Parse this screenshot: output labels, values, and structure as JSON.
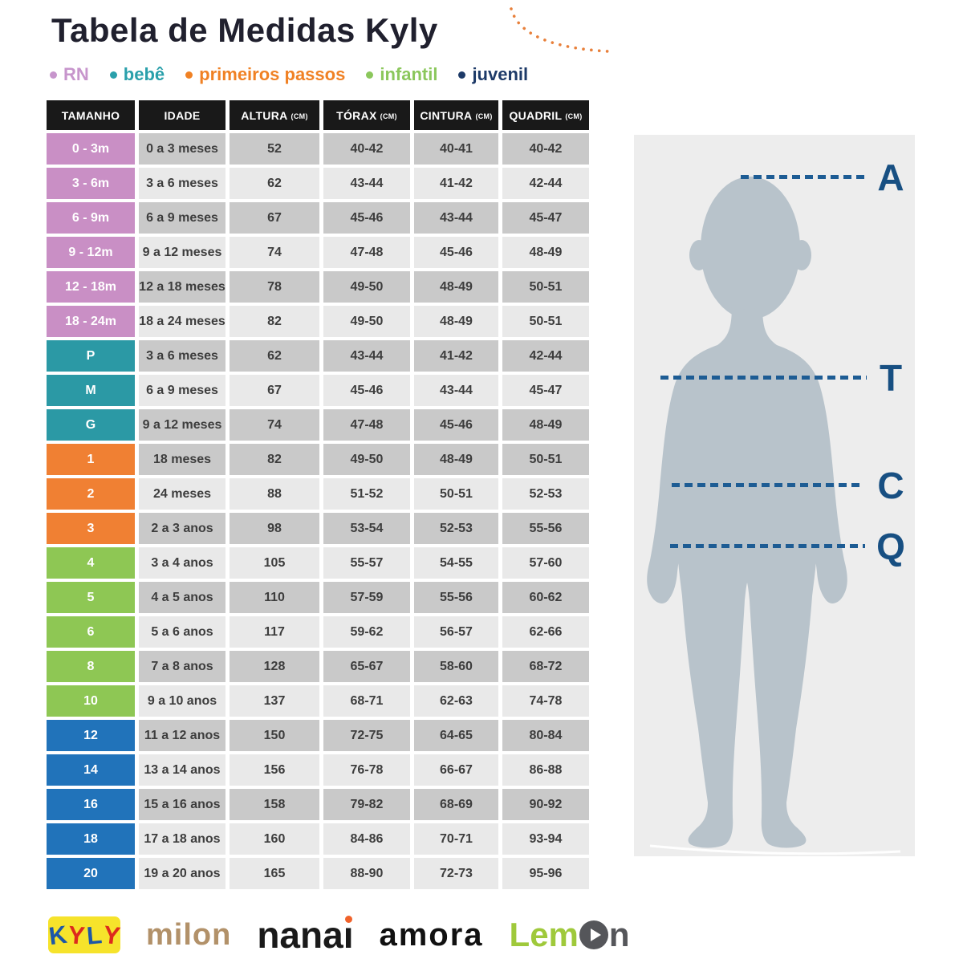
{
  "header": {
    "title": "Tabela de Medidas Kyly"
  },
  "legend": {
    "items": [
      {
        "label": "RN",
        "color": "#c795cc"
      },
      {
        "label": "bebê",
        "color": "#2aa0ab"
      },
      {
        "label": "primeiros passos",
        "color": "#f08124"
      },
      {
        "label": "infantil",
        "color": "#8bc75c"
      },
      {
        "label": "juvenil",
        "color": "#1d3a68"
      }
    ]
  },
  "table": {
    "columns": [
      {
        "label": "TAMANHO",
        "unit": ""
      },
      {
        "label": "IDADE",
        "unit": ""
      },
      {
        "label": "ALTURA",
        "unit": "(CM)"
      },
      {
        "label": "TÓRAX",
        "unit": "(CM)"
      },
      {
        "label": "CINTURA",
        "unit": "(CM)"
      },
      {
        "label": "QUADRIL",
        "unit": "(CM)"
      }
    ],
    "rows": [
      {
        "size": "0 - 3m",
        "group": "rn",
        "shade": "dark",
        "idade": "0 a 3 meses",
        "altura": "52",
        "torax": "40-42",
        "cintura": "40-41",
        "quadril": "40-42"
      },
      {
        "size": "3 - 6m",
        "group": "rn",
        "shade": "light",
        "idade": "3 a 6 meses",
        "altura": "62",
        "torax": "43-44",
        "cintura": "41-42",
        "quadril": "42-44"
      },
      {
        "size": "6 - 9m",
        "group": "rn",
        "shade": "dark",
        "idade": "6 a 9 meses",
        "altura": "67",
        "torax": "45-46",
        "cintura": "43-44",
        "quadril": "45-47"
      },
      {
        "size": "9 - 12m",
        "group": "rn",
        "shade": "light",
        "idade": "9 a 12 meses",
        "altura": "74",
        "torax": "47-48",
        "cintura": "45-46",
        "quadril": "48-49"
      },
      {
        "size": "12 - 18m",
        "group": "rn",
        "shade": "dark",
        "idade": "12 a 18 meses",
        "altura": "78",
        "torax": "49-50",
        "cintura": "48-49",
        "quadril": "50-51"
      },
      {
        "size": "18 - 24m",
        "group": "rn",
        "shade": "light",
        "idade": "18 a 24 meses",
        "altura": "82",
        "torax": "49-50",
        "cintura": "48-49",
        "quadril": "50-51"
      },
      {
        "size": "P",
        "group": "bebe",
        "shade": "dark",
        "idade": "3 a 6 meses",
        "altura": "62",
        "torax": "43-44",
        "cintura": "41-42",
        "quadril": "42-44"
      },
      {
        "size": "M",
        "group": "bebe",
        "shade": "light",
        "idade": "6 a 9 meses",
        "altura": "67",
        "torax": "45-46",
        "cintura": "43-44",
        "quadril": "45-47"
      },
      {
        "size": "G",
        "group": "bebe",
        "shade": "dark",
        "idade": "9 a 12 meses",
        "altura": "74",
        "torax": "47-48",
        "cintura": "45-46",
        "quadril": "48-49"
      },
      {
        "size": "1",
        "group": "pp",
        "shade": "dark",
        "idade": "18 meses",
        "altura": "82",
        "torax": "49-50",
        "cintura": "48-49",
        "quadril": "50-51"
      },
      {
        "size": "2",
        "group": "pp",
        "shade": "light",
        "idade": "24 meses",
        "altura": "88",
        "torax": "51-52",
        "cintura": "50-51",
        "quadril": "52-53"
      },
      {
        "size": "3",
        "group": "pp",
        "shade": "dark",
        "idade": "2 a 3 anos",
        "altura": "98",
        "torax": "53-54",
        "cintura": "52-53",
        "quadril": "55-56"
      },
      {
        "size": "4",
        "group": "infantil",
        "shade": "light",
        "idade": "3 a 4 anos",
        "altura": "105",
        "torax": "55-57",
        "cintura": "54-55",
        "quadril": "57-60"
      },
      {
        "size": "5",
        "group": "infantil",
        "shade": "dark",
        "idade": "4 a 5 anos",
        "altura": "110",
        "torax": "57-59",
        "cintura": "55-56",
        "quadril": "60-62"
      },
      {
        "size": "6",
        "group": "infantil",
        "shade": "light",
        "idade": "5 a 6 anos",
        "altura": "117",
        "torax": "59-62",
        "cintura": "56-57",
        "quadril": "62-66"
      },
      {
        "size": "8",
        "group": "infantil",
        "shade": "dark",
        "idade": "7 a 8 anos",
        "altura": "128",
        "torax": "65-67",
        "cintura": "58-60",
        "quadril": "68-72"
      },
      {
        "size": "10",
        "group": "infantil",
        "shade": "light",
        "idade": "9 a 10 anos",
        "altura": "137",
        "torax": "68-71",
        "cintura": "62-63",
        "quadril": "74-78"
      },
      {
        "size": "12",
        "group": "juvenil",
        "shade": "dark",
        "idade": "11 a 12 anos",
        "altura": "150",
        "torax": "72-75",
        "cintura": "64-65",
        "quadril": "80-84"
      },
      {
        "size": "14",
        "group": "juvenil",
        "shade": "light",
        "idade": "13 a 14 anos",
        "altura": "156",
        "torax": "76-78",
        "cintura": "66-67",
        "quadril": "86-88"
      },
      {
        "size": "16",
        "group": "juvenil",
        "shade": "dark",
        "idade": "15 a 16 anos",
        "altura": "158",
        "torax": "79-82",
        "cintura": "68-69",
        "quadril": "90-92"
      },
      {
        "size": "18",
        "group": "juvenil",
        "shade": "light",
        "idade": "17 a 18 anos",
        "altura": "160",
        "torax": "84-86",
        "cintura": "70-71",
        "quadril": "93-94"
      },
      {
        "size": "20",
        "group": "juvenil",
        "shade": "light",
        "idade": "19 a 20 anos",
        "altura": "165",
        "torax": "88-90",
        "cintura": "72-73",
        "quadril": "95-96"
      }
    ]
  },
  "diagram": {
    "labels": [
      {
        "letter": "A"
      },
      {
        "letter": "T"
      },
      {
        "letter": "C"
      },
      {
        "letter": "Q"
      }
    ]
  },
  "footer": {
    "logos": {
      "kyly": {
        "text": "KYLY"
      },
      "milon": {
        "text": "milon"
      },
      "nanai": {
        "text": "nanai"
      },
      "amora": {
        "text": "amora"
      },
      "lemon": {
        "text": "Lemon"
      }
    }
  },
  "palette": {
    "title_color": "#20202e",
    "header_bg": "#191919",
    "header_text": "#ffffff",
    "cell_text": "#3d3d3d",
    "row_dark": "#c9c9c9",
    "row_light": "#e9e9e9",
    "rn": "#c98fc5",
    "bebe": "#2b99a5",
    "pp": "#f08033",
    "infantil": "#8ec754",
    "juvenil": "#2173ba",
    "accent_line": "#1d5c94",
    "letter_color": "#174f82",
    "silhouette": "#b8c3cb",
    "panel_bg": "#ededed",
    "arc_dots": "#e8803b",
    "kyly_yellow": "#f6e32b",
    "kyly_blue": "#1d57a7",
    "kyly_red": "#dd2a1d",
    "milon_tan": "#b29169",
    "nanai_black": "#1a1a1a",
    "nanai_dot": "#f0622a",
    "amora_black": "#111111",
    "lemon_green": "#9fc93b",
    "lemon_gray": "#55565a"
  }
}
